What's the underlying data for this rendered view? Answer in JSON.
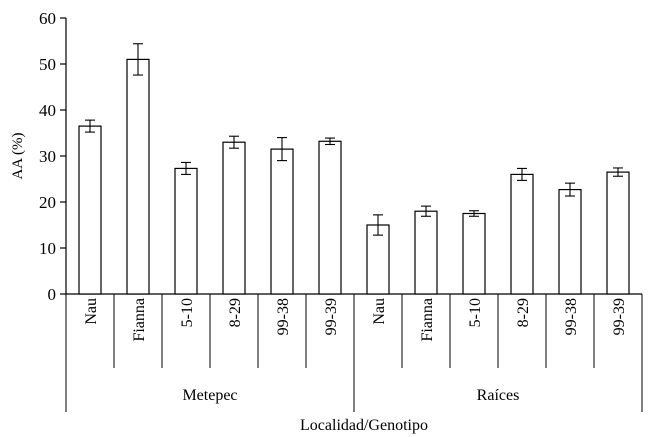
{
  "chart_data": {
    "type": "bar",
    "title": "",
    "ylabel": "AA (%)",
    "xlabel": "Localidad/Genotipo",
    "ylim": [
      0,
      60
    ],
    "yticks": [
      0,
      10,
      20,
      30,
      40,
      50,
      60
    ],
    "grid": false,
    "legend": "none",
    "groups": [
      {
        "name": "Metepec",
        "categories": [
          "Nau",
          "Fianna",
          "5-10",
          "8-29",
          "99-38",
          "99-39"
        ],
        "values": [
          36.5,
          51,
          27.3,
          33,
          31.5,
          33.2
        ],
        "errors": [
          1.3,
          3.4,
          1.3,
          1.3,
          2.5,
          0.7
        ]
      },
      {
        "name": "Raíces",
        "categories": [
          "Nau",
          "Fianna",
          "5-10",
          "8-29",
          "99-38",
          "99-39"
        ],
        "values": [
          15,
          18,
          17.5,
          26,
          22.7,
          26.5
        ],
        "errors": [
          2.2,
          1.1,
          0.6,
          1.3,
          1.4,
          0.9
        ]
      }
    ]
  },
  "colors": {
    "bar_fill": "#ffffff",
    "stroke": "#000000"
  }
}
